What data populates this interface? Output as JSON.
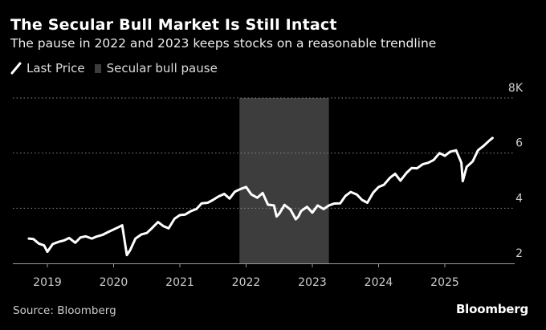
{
  "header": {
    "title": "The Secular Bull Market Is Still Intact",
    "subtitle": "The pause in 2022 and 2023 keeps stocks on a reasonable trendline"
  },
  "legend": {
    "items": [
      {
        "label": "Last Price",
        "icon": "line-icon"
      },
      {
        "label": "Secular bull pause",
        "icon": "shaded-box-icon"
      }
    ]
  },
  "footer": {
    "source": "Source: Bloomberg",
    "brand": "Bloomberg"
  },
  "chart_data": {
    "type": "line",
    "title": "The Secular Bull Market Is Still Intact",
    "subtitle": "The pause in 2022 and 2023 keeps stocks on a reasonable trendline",
    "xlabel": "",
    "ylabel": "",
    "y_axis_position": "right",
    "xlim": [
      2018.65,
      2026.35
    ],
    "ylim": [
      2000,
      8000
    ],
    "y_ticks": [
      2000,
      4000,
      6000,
      8000
    ],
    "y_tick_labels": [
      "2",
      "4",
      "6",
      "8K"
    ],
    "x_ticks": [
      2019,
      2020,
      2021,
      2022,
      2023,
      2024,
      2025
    ],
    "x_tick_labels": [
      "2019",
      "2020",
      "2021",
      "2022",
      "2023",
      "2024",
      "2025"
    ],
    "grid": "horizontal dotted",
    "legend_position": "top-left",
    "colors": {
      "line": "#ffffff",
      "shade": "#3d3d3d",
      "grid": "#888888",
      "axis": "#999999"
    },
    "shaded_regions": [
      {
        "label": "Secular bull pause",
        "x_start": 2021.9,
        "x_end": 2023.25
      }
    ],
    "series": [
      {
        "name": "Last Price",
        "x": [
          2018.72,
          2018.79,
          2018.87,
          2018.95,
          2019.0,
          2019.08,
          2019.17,
          2019.25,
          2019.33,
          2019.42,
          2019.5,
          2019.58,
          2019.67,
          2019.75,
          2019.83,
          2019.92,
          2020.0,
          2020.08,
          2020.13,
          2020.2,
          2020.25,
          2020.33,
          2020.42,
          2020.5,
          2020.58,
          2020.67,
          2020.75,
          2020.83,
          2020.92,
          2021.0,
          2021.08,
          2021.17,
          2021.25,
          2021.33,
          2021.42,
          2021.5,
          2021.58,
          2021.67,
          2021.75,
          2021.83,
          2021.92,
          2022.0,
          2022.08,
          2022.17,
          2022.25,
          2022.33,
          2022.42,
          2022.46,
          2022.5,
          2022.58,
          2022.67,
          2022.75,
          2022.79,
          2022.83,
          2022.92,
          2023.0,
          2023.08,
          2023.17,
          2023.25,
          2023.33,
          2023.42,
          2023.5,
          2023.58,
          2023.67,
          2023.75,
          2023.83,
          2023.92,
          2024.0,
          2024.08,
          2024.17,
          2024.25,
          2024.33,
          2024.42,
          2024.5,
          2024.58,
          2024.67,
          2024.75,
          2024.83,
          2024.92,
          2025.0,
          2025.08,
          2025.17,
          2025.25,
          2025.27,
          2025.33,
          2025.42,
          2025.5,
          2025.58,
          2025.67,
          2025.72
        ],
        "values": [
          2900,
          2880,
          2720,
          2650,
          2420,
          2700,
          2780,
          2830,
          2920,
          2750,
          2940,
          2980,
          2900,
          2980,
          3030,
          3140,
          3230,
          3320,
          3380,
          2300,
          2480,
          2900,
          3050,
          3100,
          3280,
          3500,
          3350,
          3270,
          3620,
          3750,
          3770,
          3900,
          3970,
          4180,
          4200,
          4300,
          4420,
          4520,
          4350,
          4600,
          4700,
          4770,
          4500,
          4380,
          4550,
          4130,
          4100,
          3700,
          3800,
          4120,
          3950,
          3600,
          3700,
          3900,
          4050,
          3840,
          4100,
          3970,
          4100,
          4170,
          4180,
          4450,
          4590,
          4500,
          4300,
          4200,
          4570,
          4770,
          4850,
          5100,
          5250,
          5000,
          5280,
          5460,
          5450,
          5600,
          5650,
          5750,
          6000,
          5900,
          6050,
          6100,
          5650,
          4980,
          5500,
          5700,
          6100,
          6250,
          6450,
          6550
        ]
      }
    ]
  }
}
